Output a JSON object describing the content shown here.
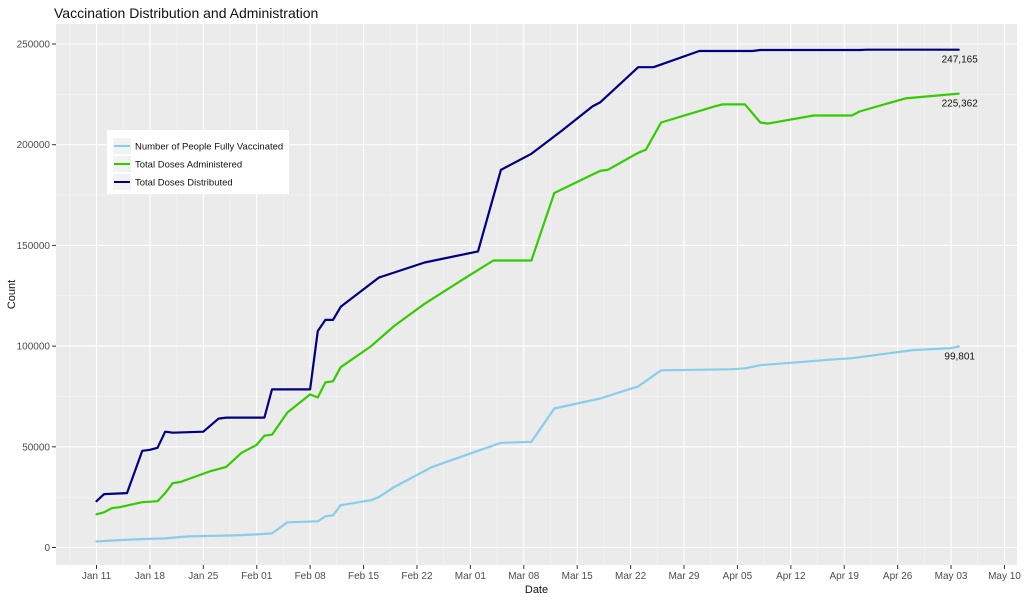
{
  "chart_data": {
    "type": "line",
    "title": "Vaccination Distribution and Administration",
    "xlabel": "Date",
    "ylabel": "Count",
    "x_ticks": [
      "Jan 11",
      "Jan 18",
      "Jan 25",
      "Feb 01",
      "Feb 08",
      "Feb 15",
      "Feb 22",
      "Mar 01",
      "Mar 08",
      "Mar 15",
      "Mar 22",
      "Mar 29",
      "Apr 05",
      "Apr 12",
      "Apr 19",
      "Apr 26",
      "May 03",
      "May 10"
    ],
    "y_ticks": [
      "0",
      "50000",
      "100000",
      "150000",
      "200000",
      "250000"
    ],
    "ylim": [
      0,
      250000
    ],
    "grid": true,
    "legend_position": "left",
    "background": "#ebebeb",
    "series": [
      {
        "name": "Number of People Fully Vaccinated",
        "color": "#87ceeb",
        "end_label": "99,801",
        "points": [
          [
            "2021-01-11",
            3000
          ],
          [
            "2021-01-13",
            3500
          ],
          [
            "2021-01-16",
            4000
          ],
          [
            "2021-01-20",
            4500
          ],
          [
            "2021-01-23",
            5500
          ],
          [
            "2021-01-29",
            6000
          ],
          [
            "2021-02-01",
            6500
          ],
          [
            "2021-02-03",
            7000
          ],
          [
            "2021-02-05",
            12500
          ],
          [
            "2021-02-09",
            13000
          ],
          [
            "2021-02-10",
            15500
          ],
          [
            "2021-02-11",
            16000
          ],
          [
            "2021-02-12",
            21000
          ],
          [
            "2021-02-16",
            23500
          ],
          [
            "2021-02-17",
            25000
          ],
          [
            "2021-02-19",
            30000
          ],
          [
            "2021-02-24",
            40000
          ],
          [
            "2021-03-02",
            48000
          ],
          [
            "2021-03-05",
            52000
          ],
          [
            "2021-03-09",
            52500
          ],
          [
            "2021-03-12",
            69000
          ],
          [
            "2021-03-18",
            74000
          ],
          [
            "2021-03-23",
            80000
          ],
          [
            "2021-03-26",
            88000
          ],
          [
            "2021-04-04",
            88500
          ],
          [
            "2021-04-06",
            89000
          ],
          [
            "2021-04-08",
            90500
          ],
          [
            "2021-04-18",
            93500
          ],
          [
            "2021-04-20",
            94000
          ],
          [
            "2021-04-28",
            98000
          ],
          [
            "2021-05-03",
            99000
          ],
          [
            "2021-05-04",
            99801
          ]
        ]
      },
      {
        "name": "Total Doses Administered",
        "color": "#33cc00",
        "end_label": "225,362",
        "points": [
          [
            "2021-01-11",
            16500
          ],
          [
            "2021-01-12",
            17500
          ],
          [
            "2021-01-13",
            19500
          ],
          [
            "2021-01-14",
            20000
          ],
          [
            "2021-01-17",
            22500
          ],
          [
            "2021-01-19",
            23000
          ],
          [
            "2021-01-20",
            27000
          ],
          [
            "2021-01-21",
            32000
          ],
          [
            "2021-01-22",
            32500
          ],
          [
            "2021-01-26",
            38000
          ],
          [
            "2021-01-28",
            40000
          ],
          [
            "2021-01-30",
            47000
          ],
          [
            "2021-02-01",
            51000
          ],
          [
            "2021-02-02",
            55500
          ],
          [
            "2021-02-03",
            56000
          ],
          [
            "2021-02-05",
            67000
          ],
          [
            "2021-02-08",
            76000
          ],
          [
            "2021-02-09",
            74500
          ],
          [
            "2021-02-10",
            82000
          ],
          [
            "2021-02-11",
            82500
          ],
          [
            "2021-02-12",
            89500
          ],
          [
            "2021-02-16",
            100000
          ],
          [
            "2021-02-19",
            110000
          ],
          [
            "2021-02-23",
            121000
          ],
          [
            "2021-02-28",
            133000
          ],
          [
            "2021-03-04",
            142500
          ],
          [
            "2021-03-09",
            142500
          ],
          [
            "2021-03-12",
            176000
          ],
          [
            "2021-03-18",
            187000
          ],
          [
            "2021-03-19",
            187500
          ],
          [
            "2021-03-23",
            196000
          ],
          [
            "2021-03-24",
            197500
          ],
          [
            "2021-03-26",
            211000
          ],
          [
            "2021-04-02",
            219000
          ],
          [
            "2021-04-03",
            220000
          ],
          [
            "2021-04-06",
            220000
          ],
          [
            "2021-04-08",
            211000
          ],
          [
            "2021-04-09",
            210500
          ],
          [
            "2021-04-15",
            214500
          ],
          [
            "2021-04-20",
            214500
          ],
          [
            "2021-04-21",
            216500
          ],
          [
            "2021-04-27",
            223000
          ],
          [
            "2021-05-04",
            225362
          ]
        ]
      },
      {
        "name": "Total Doses Distributed",
        "color": "#000080",
        "end_label": "247,165",
        "points": [
          [
            "2021-01-11",
            23000
          ],
          [
            "2021-01-12",
            26500
          ],
          [
            "2021-01-15",
            27000
          ],
          [
            "2021-01-17",
            48000
          ],
          [
            "2021-01-18",
            48500
          ],
          [
            "2021-01-19",
            49500
          ],
          [
            "2021-01-20",
            57500
          ],
          [
            "2021-01-21",
            57000
          ],
          [
            "2021-01-25",
            57500
          ],
          [
            "2021-01-27",
            64000
          ],
          [
            "2021-01-28",
            64500
          ],
          [
            "2021-02-02",
            64500
          ],
          [
            "2021-02-03",
            78500
          ],
          [
            "2021-02-08",
            78500
          ],
          [
            "2021-02-09",
            107500
          ],
          [
            "2021-02-10",
            113000
          ],
          [
            "2021-02-11",
            113000
          ],
          [
            "2021-02-12",
            119500
          ],
          [
            "2021-02-17",
            134000
          ],
          [
            "2021-02-23",
            141500
          ],
          [
            "2021-03-02",
            147000
          ],
          [
            "2021-03-05",
            187500
          ],
          [
            "2021-03-09",
            195500
          ],
          [
            "2021-03-13",
            207000
          ],
          [
            "2021-03-17",
            219000
          ],
          [
            "2021-03-18",
            221000
          ],
          [
            "2021-03-23",
            238500
          ],
          [
            "2021-03-25",
            238500
          ],
          [
            "2021-03-31",
            246500
          ],
          [
            "2021-04-07",
            246500
          ],
          [
            "2021-04-08",
            247000
          ],
          [
            "2021-04-21",
            247000
          ],
          [
            "2021-04-22",
            247165
          ],
          [
            "2021-05-04",
            247165
          ]
        ]
      }
    ]
  }
}
